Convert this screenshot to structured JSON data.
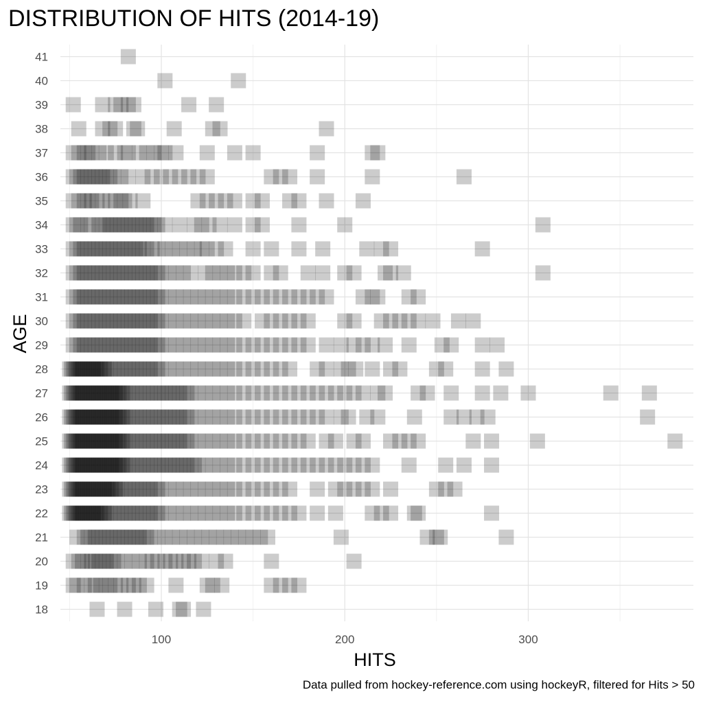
{
  "chart_data": {
    "type": "scatter",
    "title": "DISTRIBUTION OF HITS (2014-19)",
    "xlabel": "HITS",
    "ylabel": "AGE",
    "caption": "Data pulled from hockey-reference.com using hockeyR, filtered for Hits > 50",
    "xlim": [
      45,
      390
    ],
    "ylim": [
      17.5,
      41.5
    ],
    "x_ticks": [
      100,
      200,
      300
    ],
    "y_ticks": [
      18,
      19,
      20,
      21,
      22,
      23,
      24,
      25,
      26,
      27,
      28,
      29,
      30,
      31,
      32,
      33,
      34,
      35,
      36,
      37,
      38,
      39,
      40,
      41
    ],
    "grid": true,
    "marker": {
      "shape": "square",
      "color": "#000000",
      "opacity": 0.2
    },
    "rows": [
      {
        "age": 18,
        "hits": [
          65,
          80,
          97,
          110,
          112,
          123
        ]
      },
      {
        "age": 19,
        "hits": [
          52,
          54,
          58,
          62,
          64,
          67,
          70,
          72,
          75,
          78,
          82,
          85,
          88,
          92,
          108,
          125,
          128,
          133,
          160,
          165,
          170,
          175
        ]
      },
      {
        "age": 20,
        "hits": [
          52,
          55,
          57,
          60,
          62,
          64,
          66,
          68,
          70,
          72,
          74,
          76,
          80,
          84,
          88,
          92,
          95,
          98,
          102,
          105,
          108,
          112,
          115,
          118,
          122,
          130,
          135,
          160,
          205
        ]
      },
      {
        "age": 21,
        "hits": [
          54,
          58,
          60,
          62,
          64,
          66,
          68,
          70,
          72,
          74,
          76,
          78,
          80,
          82,
          84,
          86,
          88,
          90,
          92,
          94,
          98,
          102,
          106,
          110,
          114,
          118,
          122,
          126,
          130,
          134,
          138,
          142,
          146,
          150,
          154,
          158,
          198,
          245,
          250,
          252,
          288
        ]
      },
      {
        "age": 22,
        "hits": [
          50,
          51,
          52,
          53,
          54,
          55,
          56,
          57,
          58,
          59,
          60,
          61,
          62,
          63,
          64,
          65,
          66,
          67,
          68,
          69,
          70,
          72,
          74,
          76,
          78,
          80,
          82,
          84,
          86,
          88,
          90,
          92,
          94,
          96,
          98,
          100,
          104,
          108,
          112,
          116,
          120,
          124,
          128,
          132,
          136,
          140,
          145,
          150,
          155,
          160,
          165,
          170,
          175,
          185,
          195,
          215,
          220,
          225,
          238,
          240,
          280
        ]
      },
      {
        "age": 23,
        "hits": [
          50,
          51,
          52,
          53,
          54,
          55,
          56,
          57,
          58,
          59,
          60,
          61,
          62,
          63,
          64,
          65,
          66,
          67,
          68,
          69,
          70,
          71,
          72,
          73,
          74,
          75,
          76,
          78,
          80,
          82,
          84,
          86,
          88,
          90,
          92,
          94,
          96,
          98,
          100,
          104,
          108,
          112,
          116,
          120,
          124,
          128,
          132,
          136,
          140,
          145,
          150,
          155,
          160,
          165,
          170,
          185,
          195,
          200,
          205,
          210,
          215,
          225,
          250,
          255,
          260
        ]
      },
      {
        "age": 24,
        "hits": [
          50,
          51,
          52,
          53,
          54,
          55,
          56,
          57,
          58,
          59,
          60,
          61,
          62,
          63,
          64,
          65,
          66,
          67,
          68,
          69,
          70,
          71,
          72,
          73,
          74,
          75,
          76,
          77,
          78,
          79,
          80,
          82,
          84,
          86,
          88,
          90,
          92,
          94,
          96,
          98,
          100,
          102,
          104,
          106,
          108,
          110,
          112,
          114,
          116,
          118,
          120,
          124,
          128,
          132,
          136,
          140,
          145,
          150,
          155,
          160,
          165,
          170,
          175,
          180,
          185,
          190,
          195,
          200,
          205,
          210,
          215,
          235,
          255,
          265,
          280
        ]
      },
      {
        "age": 25,
        "hits": [
          50,
          51,
          52,
          53,
          54,
          55,
          56,
          57,
          58,
          59,
          60,
          61,
          62,
          63,
          64,
          65,
          66,
          67,
          68,
          69,
          70,
          71,
          72,
          73,
          74,
          75,
          76,
          77,
          78,
          79,
          80,
          82,
          84,
          86,
          88,
          90,
          92,
          94,
          96,
          98,
          100,
          102,
          104,
          106,
          108,
          110,
          112,
          114,
          116,
          120,
          124,
          128,
          132,
          136,
          140,
          145,
          150,
          155,
          160,
          165,
          170,
          175,
          180,
          190,
          195,
          205,
          210,
          225,
          230,
          235,
          240,
          270,
          280,
          305,
          380
        ]
      },
      {
        "age": 26,
        "hits": [
          50,
          51,
          52,
          53,
          54,
          55,
          56,
          57,
          58,
          59,
          60,
          61,
          62,
          63,
          64,
          65,
          66,
          67,
          68,
          69,
          70,
          71,
          72,
          73,
          74,
          75,
          76,
          77,
          78,
          79,
          80,
          82,
          84,
          86,
          88,
          90,
          92,
          94,
          96,
          98,
          100,
          102,
          104,
          106,
          108,
          110,
          112,
          114,
          116,
          120,
          124,
          128,
          132,
          136,
          140,
          145,
          150,
          155,
          160,
          165,
          170,
          175,
          180,
          185,
          190,
          198,
          202,
          212,
          218,
          238,
          258,
          265,
          272,
          278,
          365
        ]
      },
      {
        "age": 27,
        "hits": [
          50,
          51,
          52,
          53,
          54,
          55,
          56,
          57,
          58,
          59,
          60,
          61,
          62,
          63,
          64,
          65,
          66,
          67,
          68,
          69,
          70,
          71,
          72,
          73,
          74,
          75,
          76,
          77,
          78,
          79,
          80,
          82,
          84,
          86,
          88,
          90,
          92,
          94,
          96,
          98,
          100,
          102,
          104,
          106,
          108,
          110,
          112,
          114,
          116,
          120,
          124,
          128,
          132,
          136,
          140,
          145,
          150,
          155,
          160,
          165,
          170,
          175,
          180,
          185,
          190,
          195,
          200,
          205,
          210,
          218,
          222,
          240,
          245,
          258,
          275,
          285,
          300,
          345,
          366
        ]
      },
      {
        "age": 28,
        "hits": [
          50,
          51,
          52,
          53,
          54,
          55,
          56,
          57,
          58,
          59,
          60,
          61,
          62,
          63,
          64,
          65,
          66,
          67,
          68,
          69,
          70,
          72,
          74,
          76,
          78,
          80,
          82,
          84,
          86,
          88,
          90,
          92,
          94,
          96,
          98,
          100,
          104,
          108,
          112,
          116,
          120,
          124,
          128,
          132,
          136,
          140,
          145,
          150,
          155,
          160,
          165,
          170,
          185,
          190,
          198,
          202,
          206,
          215,
          225,
          230,
          250,
          255,
          275,
          288
        ]
      },
      {
        "age": 29,
        "hits": [
          52,
          54,
          56,
          58,
          60,
          62,
          64,
          66,
          68,
          70,
          72,
          74,
          76,
          78,
          80,
          82,
          84,
          86,
          88,
          90,
          92,
          94,
          96,
          98,
          100,
          104,
          108,
          112,
          116,
          120,
          124,
          128,
          132,
          136,
          140,
          145,
          150,
          155,
          160,
          165,
          170,
          175,
          180,
          190,
          198,
          205,
          210,
          215,
          222,
          235,
          253,
          258,
          275,
          283
        ]
      },
      {
        "age": 30,
        "hits": [
          52,
          54,
          56,
          58,
          60,
          62,
          64,
          66,
          68,
          70,
          72,
          74,
          76,
          78,
          80,
          82,
          84,
          86,
          88,
          90,
          92,
          94,
          96,
          98,
          100,
          104,
          108,
          112,
          116,
          120,
          124,
          128,
          132,
          136,
          140,
          145,
          155,
          160,
          165,
          170,
          175,
          180,
          200,
          205,
          220,
          225,
          230,
          235,
          240,
          248,
          262,
          270
        ]
      },
      {
        "age": 31,
        "hits": [
          52,
          54,
          56,
          58,
          60,
          62,
          64,
          66,
          68,
          70,
          72,
          74,
          76,
          78,
          80,
          82,
          84,
          86,
          88,
          90,
          92,
          94,
          96,
          98,
          100,
          104,
          108,
          112,
          116,
          120,
          124,
          128,
          132,
          136,
          140,
          145,
          150,
          155,
          160,
          165,
          170,
          175,
          180,
          185,
          190,
          210,
          215,
          218,
          235,
          240
        ]
      },
      {
        "age": 32,
        "hits": [
          52,
          54,
          56,
          58,
          60,
          62,
          64,
          66,
          68,
          70,
          72,
          74,
          76,
          78,
          80,
          82,
          84,
          86,
          88,
          90,
          92,
          94,
          96,
          98,
          100,
          104,
          108,
          112,
          116,
          124,
          128,
          132,
          136,
          140,
          145,
          150,
          160,
          165,
          180,
          188,
          200,
          205,
          222,
          225,
          232,
          308
        ]
      },
      {
        "age": 33,
        "hits": [
          52,
          54,
          56,
          58,
          60,
          62,
          64,
          66,
          68,
          70,
          72,
          74,
          76,
          78,
          80,
          82,
          84,
          86,
          88,
          90,
          92,
          95,
          98,
          102,
          106,
          110,
          114,
          118,
          122,
          125,
          130,
          135,
          150,
          160,
          175,
          188,
          212,
          220,
          225,
          275
        ]
      },
      {
        "age": 34,
        "hits": [
          52,
          54,
          56,
          60,
          62,
          66,
          68,
          70,
          72,
          74,
          76,
          78,
          80,
          82,
          84,
          86,
          88,
          90,
          92,
          94,
          96,
          98,
          102,
          110,
          118,
          122,
          126,
          132,
          140,
          150,
          155,
          175,
          200,
          308
        ]
      },
      {
        "age": 35,
        "hits": [
          52,
          55,
          58,
          60,
          62,
          65,
          68,
          72,
          75,
          78,
          80,
          83,
          90,
          120,
          125,
          130,
          135,
          140,
          150,
          155,
          170,
          175,
          190,
          210
        ]
      },
      {
        "age": 36,
        "hits": [
          52,
          54,
          56,
          58,
          60,
          62,
          64,
          66,
          68,
          70,
          72,
          74,
          78,
          82,
          90,
          95,
          100,
          105,
          110,
          115,
          120,
          125,
          160,
          165,
          170,
          185,
          215,
          265
        ]
      },
      {
        "age": 37,
        "hits": [
          52,
          55,
          58,
          60,
          62,
          66,
          70,
          75,
          80,
          82,
          88,
          92,
          96,
          100,
          102,
          108,
          125,
          140,
          150,
          185,
          215,
          218
        ]
      },
      {
        "age": 38,
        "hits": [
          55,
          68,
          72,
          75,
          85,
          87,
          107,
          128,
          132,
          190
        ]
      },
      {
        "age": 39,
        "hits": [
          52,
          68,
          75,
          78,
          82,
          85,
          115,
          130
        ]
      },
      {
        "age": 40,
        "hits": [
          102,
          142
        ]
      },
      {
        "age": 41,
        "hits": [
          82
        ]
      }
    ]
  }
}
